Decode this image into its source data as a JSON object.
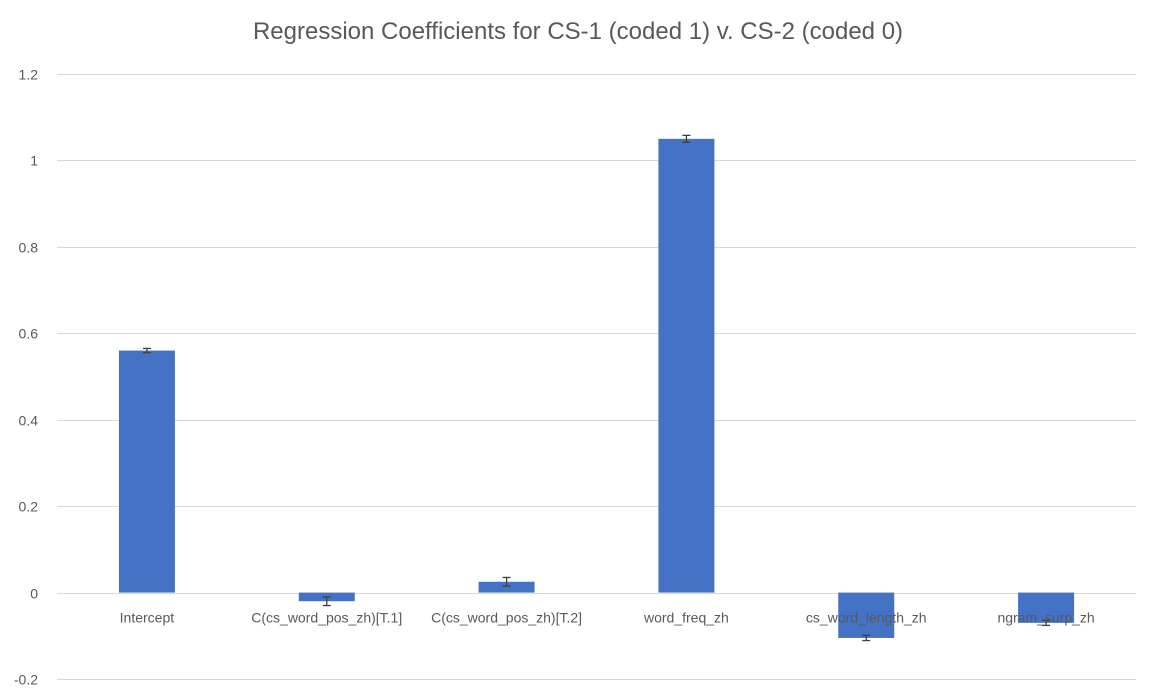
{
  "chart_data": {
    "type": "bar",
    "title": "Regression Coefficients for CS-1 (coded 1) v. CS-2 (coded 0)",
    "categories": [
      "Intercept",
      "C(cs_word_pos_zh)[T.1]",
      "C(cs_word_pos_zh)[T.2]",
      "word_freq_zh",
      "cs_word_length_zh",
      "ngram_surp_zh"
    ],
    "values": [
      0.56,
      -0.02,
      0.025,
      1.05,
      -0.105,
      -0.07
    ],
    "error": [
      0.005,
      0.01,
      0.01,
      0.008,
      0.006,
      0.006
    ],
    "ylim": [
      -0.2,
      1.2
    ],
    "yticks": [
      -0.2,
      0,
      0.2,
      0.4,
      0.6,
      0.8,
      1,
      1.2
    ],
    "ytick_labels": [
      "-0.2",
      "0",
      "0.2",
      "0.4",
      "0.6",
      "0.8",
      "1",
      "1.2"
    ],
    "xlabel": "",
    "ylabel": "",
    "grid": true,
    "legend": "none",
    "bar_color": "#4472C4",
    "grid_color": "#D9D9D9",
    "text_color": "#595959",
    "errorbar_color": "#404040"
  }
}
